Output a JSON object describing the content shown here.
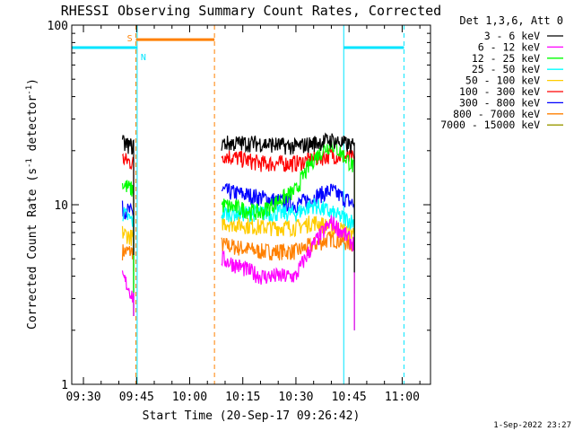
{
  "chart_data": {
    "type": "line",
    "title": "RHESSI Observing Summary Count Rates, Corrected",
    "xlabel": "Start Time (20-Sep-17 09:26:42)",
    "ylabel": "Corrected Count Rate (s",
    "ylabel_sup": "-1",
    "ylabel_mid": " detector",
    "ylabel_sup2": "-1",
    "ylabel_end": ")",
    "yscale": "log",
    "ylim": [
      1,
      100
    ],
    "xlim": [
      "09:26:42",
      "11:08:00"
    ],
    "x_tick_labels": [
      "09:30",
      "09:45",
      "10:00",
      "10:15",
      "10:30",
      "10:45",
      "11:00"
    ],
    "y_tick_labels": [
      "1",
      "10",
      "100"
    ],
    "legend_title": "Det 1,3,6, Att 0",
    "legend_position": "top-right outside",
    "timestamp": "1-Sep-2022 23:27",
    "annotations": {
      "saa_flag": "S",
      "night_flag": "N",
      "night_intervals": [
        [
          "09:26:42",
          "09:45:10"
        ],
        [
          "10:43:30",
          "11:00:30"
        ]
      ],
      "saa_interval": [
        "09:44:50",
        "10:07:00"
      ],
      "night_level": 75,
      "saa_level": 83
    },
    "series": [
      {
        "name": "3 - 6 keV",
        "color": "#000000",
        "segments": [
          [
            [
              "09:41:00",
              22
            ],
            [
              "09:44:10",
              21
            ]
          ],
          [
            [
              "10:09:00",
              22
            ],
            [
              "10:20:00",
              22
            ],
            [
              "10:30:00",
              21
            ],
            [
              "10:35:00",
              22
            ],
            [
              "10:40:00",
              23
            ],
            [
              "10:46:30",
              21
            ]
          ]
        ]
      },
      {
        "name": "6 - 12 keV",
        "color": "#ff00ff",
        "segments": [
          [
            [
              "09:41:00",
              4
            ],
            [
              "09:44:10",
              3
            ]
          ],
          [
            [
              "10:09:00",
              5
            ],
            [
              "10:20:00",
              4
            ],
            [
              "10:30:00",
              4
            ],
            [
              "10:35:00",
              6
            ],
            [
              "10:40:00",
              8
            ],
            [
              "10:46:30",
              6
            ]
          ]
        ]
      },
      {
        "name": "12 - 25 keV",
        "color": "#00ff00",
        "segments": [
          [
            [
              "09:41:00",
              13
            ],
            [
              "09:44:10",
              12
            ]
          ],
          [
            [
              "10:09:00",
              10
            ],
            [
              "10:20:00",
              9
            ],
            [
              "10:30:00",
              12
            ],
            [
              "10:35:00",
              18
            ],
            [
              "10:40:00",
              22
            ],
            [
              "10:46:30",
              16
            ]
          ]
        ]
      },
      {
        "name": "25 - 50 keV",
        "color": "#00ffff",
        "segments": [
          [
            [
              "09:41:00",
              9
            ],
            [
              "09:44:10",
              8
            ]
          ],
          [
            [
              "10:09:00",
              9
            ],
            [
              "10:20:00",
              9
            ],
            [
              "10:30:00",
              9
            ],
            [
              "10:35:00",
              10
            ],
            [
              "10:40:00",
              9
            ],
            [
              "10:46:30",
              8
            ]
          ]
        ]
      },
      {
        "name": "50 - 100 keV",
        "color": "#ffcc00",
        "segments": [
          [
            [
              "09:41:00",
              7
            ],
            [
              "09:44:10",
              6.5
            ]
          ],
          [
            [
              "10:09:00",
              8
            ],
            [
              "10:20:00",
              7.5
            ],
            [
              "10:30:00",
              7.5
            ],
            [
              "10:35:00",
              8
            ],
            [
              "10:40:00",
              7.5
            ],
            [
              "10:46:30",
              7
            ]
          ]
        ]
      },
      {
        "name": "100 - 300 keV",
        "color": "#ff0000",
        "segments": [
          [
            [
              "09:41:00",
              18
            ],
            [
              "09:44:10",
              17
            ]
          ],
          [
            [
              "10:09:00",
              19
            ],
            [
              "10:20:00",
              17
            ],
            [
              "10:30:00",
              17
            ],
            [
              "10:35:00",
              18
            ],
            [
              "10:40:00",
              19
            ],
            [
              "10:46:30",
              18
            ]
          ]
        ]
      },
      {
        "name": "300 - 800 keV",
        "color": "#0000ff",
        "segments": [
          [
            [
              "09:41:00",
              9.5
            ],
            [
              "09:44:10",
              9
            ]
          ],
          [
            [
              "10:09:00",
              12
            ],
            [
              "10:20:00",
              11
            ],
            [
              "10:30:00",
              10
            ],
            [
              "10:35:00",
              11
            ],
            [
              "10:40:00",
              12
            ],
            [
              "10:46:30",
              10
            ]
          ]
        ]
      },
      {
        "name": "800 - 7000 keV",
        "color": "#ff8000",
        "segments": [
          [
            [
              "09:41:00",
              5.5
            ],
            [
              "09:44:10",
              5.5
            ]
          ],
          [
            [
              "10:09:00",
              6
            ],
            [
              "10:20:00",
              5.5
            ],
            [
              "10:30:00",
              5.5
            ],
            [
              "10:35:00",
              6
            ],
            [
              "10:40:00",
              6.5
            ],
            [
              "10:46:30",
              6
            ]
          ]
        ]
      },
      {
        "name": "7000 - 15000 keV",
        "color": "#999900",
        "segments": []
      }
    ]
  }
}
